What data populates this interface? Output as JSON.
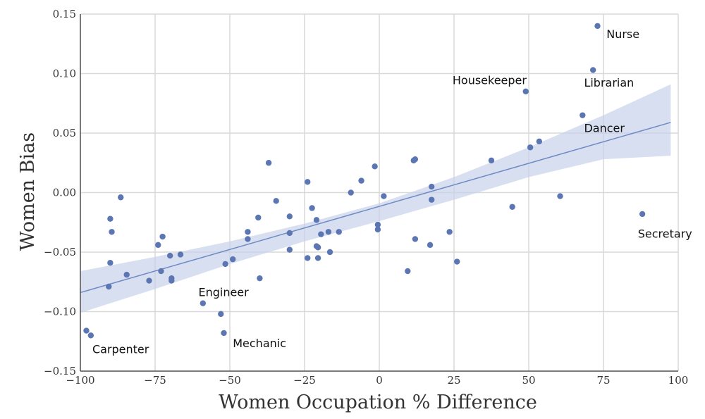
{
  "chart_data": {
    "type": "scatter",
    "title": "",
    "xlabel": "Women Occupation % Difference",
    "ylabel": "Women Bias",
    "xlim": [
      -100,
      100
    ],
    "ylim": [
      -0.15,
      0.15
    ],
    "x_ticks": [
      -100,
      -75,
      -50,
      -25,
      0,
      25,
      50,
      75,
      100
    ],
    "x_tick_labels": [
      "−100",
      "−75",
      "−50",
      "−25",
      "0",
      "25",
      "50",
      "75",
      "100"
    ],
    "y_ticks": [
      -0.15,
      -0.1,
      -0.05,
      0.0,
      0.05,
      0.1,
      0.15
    ],
    "y_tick_labels": [
      "−0.15",
      "−0.10",
      "−0.05",
      "0.00",
      "0.05",
      "0.10",
      "0.15"
    ],
    "grid": true,
    "point_color": "#5b76b3",
    "fit_line_color": "#6f8ac4",
    "ci_band_color": "#c8d2ea",
    "points": [
      {
        "x": 73,
        "y": 0.14
      },
      {
        "x": 71.5,
        "y": 0.103
      },
      {
        "x": 49,
        "y": 0.085
      },
      {
        "x": 68,
        "y": 0.065
      },
      {
        "x": 53.5,
        "y": 0.043
      },
      {
        "x": 50.5,
        "y": 0.038
      },
      {
        "x": 37.5,
        "y": 0.027
      },
      {
        "x": 11.5,
        "y": 0.027
      },
      {
        "x": 12,
        "y": 0.028
      },
      {
        "x": -1.5,
        "y": 0.022
      },
      {
        "x": -6,
        "y": 0.01
      },
      {
        "x": -9.5,
        "y": 0.0
      },
      {
        "x": 1.5,
        "y": -0.003
      },
      {
        "x": 17.5,
        "y": 0.005
      },
      {
        "x": 17.5,
        "y": -0.006
      },
      {
        "x": 60.5,
        "y": -0.003
      },
      {
        "x": 44.5,
        "y": -0.012
      },
      {
        "x": 88,
        "y": -0.018
      },
      {
        "x": -0.5,
        "y": -0.027
      },
      {
        "x": -0.5,
        "y": -0.031
      },
      {
        "x": 23.5,
        "y": -0.033
      },
      {
        "x": 12,
        "y": -0.039
      },
      {
        "x": 17,
        "y": -0.044
      },
      {
        "x": 26,
        "y": -0.058
      },
      {
        "x": 9.5,
        "y": -0.066
      },
      {
        "x": -24,
        "y": 0.009
      },
      {
        "x": -37,
        "y": 0.025
      },
      {
        "x": -34.5,
        "y": -0.007
      },
      {
        "x": -22.5,
        "y": -0.013
      },
      {
        "x": -30,
        "y": -0.02
      },
      {
        "x": -40.5,
        "y": -0.021
      },
      {
        "x": -21,
        "y": -0.023
      },
      {
        "x": -13.5,
        "y": -0.033
      },
      {
        "x": -17,
        "y": -0.033
      },
      {
        "x": -19.5,
        "y": -0.035
      },
      {
        "x": -44,
        "y": -0.033
      },
      {
        "x": -44,
        "y": -0.039
      },
      {
        "x": -30,
        "y": -0.034
      },
      {
        "x": -30,
        "y": -0.048
      },
      {
        "x": -21,
        "y": -0.045
      },
      {
        "x": -20.5,
        "y": -0.046
      },
      {
        "x": -16.5,
        "y": -0.05
      },
      {
        "x": -24,
        "y": -0.055
      },
      {
        "x": -20.5,
        "y": -0.055
      },
      {
        "x": -49,
        "y": -0.056
      },
      {
        "x": -51.5,
        "y": -0.06
      },
      {
        "x": -40,
        "y": -0.072
      },
      {
        "x": -86.5,
        "y": -0.004
      },
      {
        "x": -90,
        "y": -0.022
      },
      {
        "x": -89.5,
        "y": -0.033
      },
      {
        "x": -72.5,
        "y": -0.037
      },
      {
        "x": -74,
        "y": -0.044
      },
      {
        "x": -70,
        "y": -0.053
      },
      {
        "x": -66.5,
        "y": -0.052
      },
      {
        "x": -90,
        "y": -0.059
      },
      {
        "x": -73,
        "y": -0.066
      },
      {
        "x": -84.5,
        "y": -0.069
      },
      {
        "x": -77,
        "y": -0.074
      },
      {
        "x": -69.5,
        "y": -0.072
      },
      {
        "x": -69.5,
        "y": -0.074
      },
      {
        "x": -90.5,
        "y": -0.079
      },
      {
        "x": -59,
        "y": -0.093
      },
      {
        "x": -53,
        "y": -0.102
      },
      {
        "x": -52,
        "y": -0.118
      },
      {
        "x": -98,
        "y": -0.116
      },
      {
        "x": -96.5,
        "y": -0.12
      }
    ],
    "fit_line": {
      "x": [
        -100,
        97.5
      ],
      "y": [
        -0.084,
        0.059
      ]
    },
    "ci_band": {
      "x": [
        -100,
        -75,
        -50,
        -25,
        0,
        25,
        50,
        75,
        97.5
      ],
      "upper": [
        -0.066,
        -0.054,
        -0.041,
        -0.026,
        -0.009,
        0.013,
        0.038,
        0.065,
        0.091
      ],
      "lower": [
        -0.101,
        -0.081,
        -0.06,
        -0.041,
        -0.024,
        -0.006,
        0.013,
        0.028,
        0.031
      ]
    },
    "annotations": [
      {
        "text": "Nurse",
        "x": 76,
        "y": 0.13
      },
      {
        "text": "Librarian",
        "x": 68.5,
        "y": 0.089
      },
      {
        "text": "Housekeeper",
        "x": 24.5,
        "y": 0.091
      },
      {
        "text": "Dancer",
        "x": 68.5,
        "y": 0.051
      },
      {
        "text": "Secretary",
        "x": 86.5,
        "y": -0.038
      },
      {
        "text": "Engineer",
        "x": -60.5,
        "y": -0.087
      },
      {
        "text": "Mechanic",
        "x": -49,
        "y": -0.13
      },
      {
        "text": "Carpenter",
        "x": -96,
        "y": -0.135
      }
    ]
  }
}
